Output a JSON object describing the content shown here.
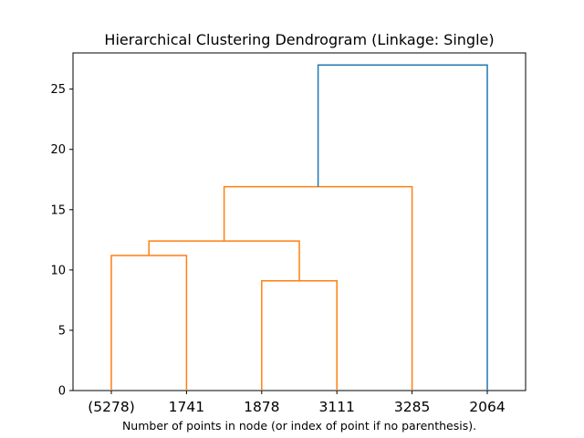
{
  "chart_data": {
    "type": "dendrogram",
    "title": "Hierarchical Clustering Dendrogram (Linkage: Single)",
    "xlabel": "Number of points in node (or index of point if no parenthesis).",
    "ylabel": "",
    "ylim": [
      0,
      28
    ],
    "yticks": [
      0,
      5,
      10,
      15,
      20,
      25
    ],
    "leaves": [
      "(5278)",
      "1741",
      "1878",
      "3111",
      "3285",
      "2064"
    ],
    "colors": {
      "below_threshold": "#ff7f0e",
      "above_threshold": "#1f77b4"
    },
    "merges": [
      {
        "left": "leaf:0",
        "right": "leaf:1",
        "height": 11.2,
        "color": "#ff7f0e"
      },
      {
        "left": "leaf:2",
        "right": "leaf:3",
        "height": 9.1,
        "color": "#ff7f0e"
      },
      {
        "left": "merge:0",
        "right": "merge:1",
        "height": 12.4,
        "color": "#ff7f0e"
      },
      {
        "left": "merge:2",
        "right": "leaf:4",
        "height": 16.9,
        "color": "#ff7f0e"
      },
      {
        "left": "merge:3",
        "right": "leaf:5",
        "height": 27.0,
        "color": "#1f77b4"
      }
    ]
  }
}
